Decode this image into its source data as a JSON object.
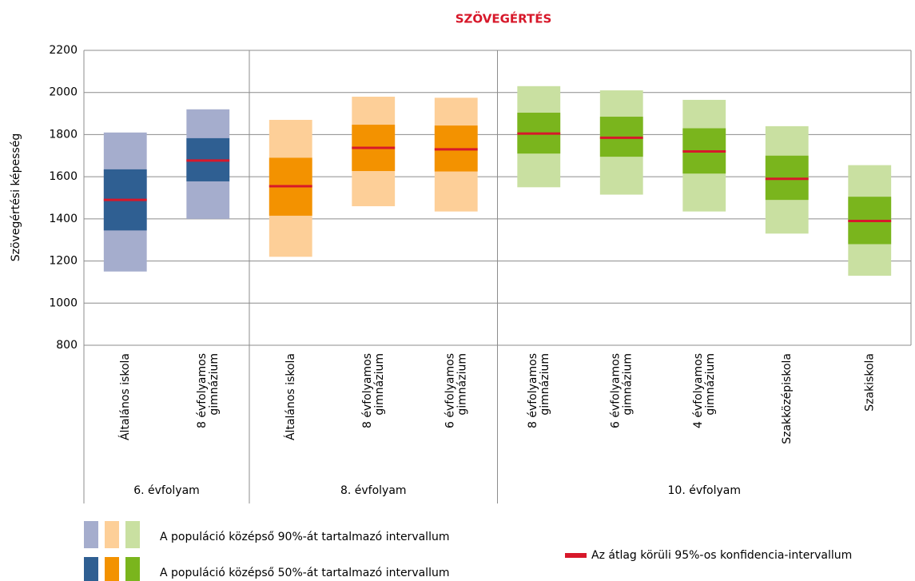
{
  "chart_data": {
    "type": "interval",
    "title": "SZÖVEGÉRTÉS",
    "y_label": "Szövegértési képesség",
    "ylim": [
      800,
      2200
    ],
    "yticks": [
      800,
      1000,
      1200,
      1400,
      1600,
      1800,
      2000,
      2200
    ],
    "grid": true,
    "mean_color": "#d7182a",
    "groups": [
      {
        "name": "6. évfolyam",
        "color_light": "#a5adcd",
        "color_dark": "#2f5f92",
        "categories": [
          {
            "label": [
              "Általános iskola"
            ],
            "p5": 1150,
            "p25": 1345,
            "mean": 1490,
            "p75": 1635,
            "p95": 1810
          },
          {
            "label": [
              "8 évfolyamos",
              "gimnázium"
            ],
            "p5": 1400,
            "p25": 1578,
            "mean": 1677,
            "p75": 1783,
            "p95": 1920
          }
        ]
      },
      {
        "name": "8. évfolyam",
        "color_light": "#fdcf98",
        "color_dark": "#f39200",
        "categories": [
          {
            "label": [
              "Általános iskola"
            ],
            "p5": 1220,
            "p25": 1415,
            "mean": 1555,
            "p75": 1690,
            "p95": 1870
          },
          {
            "label": [
              "8 évfolyamos",
              "gimnázium"
            ],
            "p5": 1460,
            "p25": 1627,
            "mean": 1737,
            "p75": 1847,
            "p95": 1980
          },
          {
            "label": [
              "6 évfolyamos",
              "gimnázium"
            ],
            "p5": 1435,
            "p25": 1625,
            "mean": 1730,
            "p75": 1843,
            "p95": 1975
          }
        ]
      },
      {
        "name": "10. évfolyam",
        "color_light": "#c9e0a1",
        "color_dark": "#7ab51d",
        "categories": [
          {
            "label": [
              "8 évfolyamos",
              "gimnázium"
            ],
            "p5": 1550,
            "p25": 1710,
            "mean": 1805,
            "p75": 1904,
            "p95": 2030
          },
          {
            "label": [
              "6 évfolyamos",
              "gimnázium"
            ],
            "p5": 1515,
            "p25": 1695,
            "mean": 1785,
            "p75": 1885,
            "p95": 2010
          },
          {
            "label": [
              "4 évfolyamos",
              "gimnázium"
            ],
            "p5": 1435,
            "p25": 1615,
            "mean": 1720,
            "p75": 1830,
            "p95": 1965
          },
          {
            "label": [
              "Szakközépiskola"
            ],
            "p5": 1330,
            "p25": 1490,
            "mean": 1590,
            "p75": 1700,
            "p95": 1840
          },
          {
            "label": [
              "Szakiskola"
            ],
            "p5": 1130,
            "p25": 1280,
            "mean": 1390,
            "p75": 1505,
            "p95": 1655
          }
        ]
      }
    ],
    "legend": {
      "range90": "A populáció középső 90%-át tartalmazó intervallum",
      "range50": "A populáció középső 50%-át tartalmazó intervallum",
      "mean_ci": "Az átlag körüli 95%-os konfidencia-intervallum"
    }
  }
}
